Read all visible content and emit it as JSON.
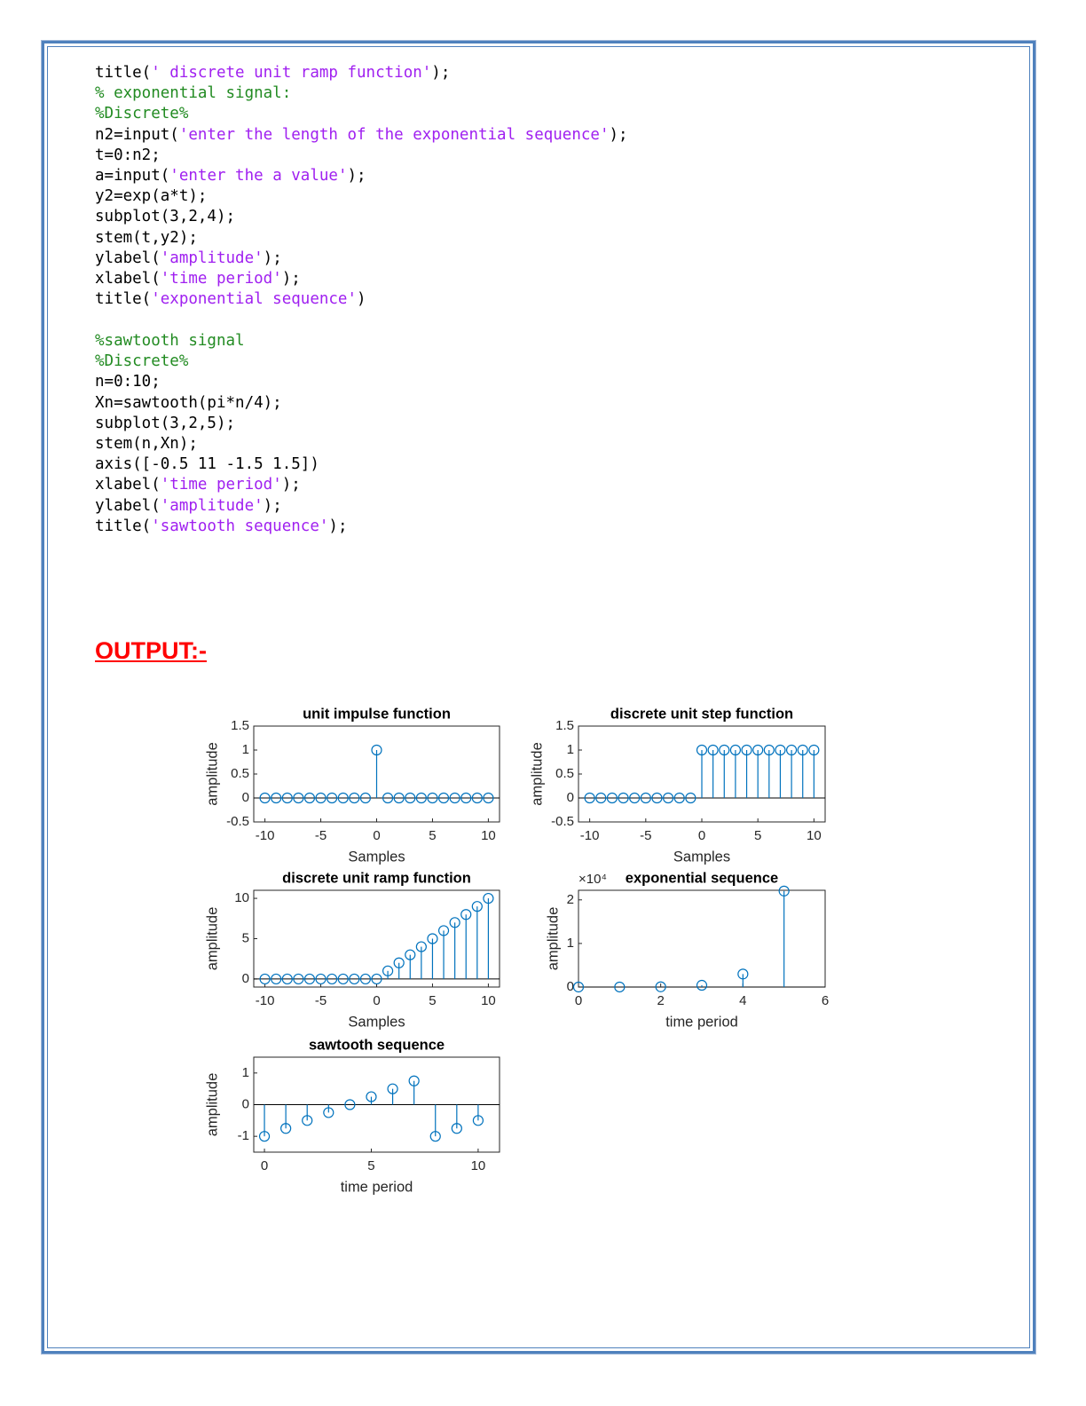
{
  "code": {
    "blocks": [
      {
        "lines": [
          [
            {
              "text": "title(",
              "color": "#000000"
            },
            {
              "text": "' discrete unit ramp function'",
              "color": "#a020f0"
            },
            {
              "text": ");",
              "color": "#000000"
            }
          ],
          [
            {
              "text": "% exponential signal:",
              "color": "#228b22"
            }
          ],
          [
            {
              "text": "%Discrete%",
              "color": "#228b22"
            }
          ],
          [
            {
              "text": "n2=input(",
              "color": "#000000"
            },
            {
              "text": "'enter the length of the exponential sequence'",
              "color": "#a020f0"
            },
            {
              "text": ");",
              "color": "#000000"
            }
          ],
          [
            {
              "text": "t=0:n2;",
              "color": "#000000"
            }
          ],
          [
            {
              "text": "a=input(",
              "color": "#000000"
            },
            {
              "text": "'enter the a value'",
              "color": "#a020f0"
            },
            {
              "text": ");",
              "color": "#000000"
            }
          ],
          [
            {
              "text": "y2=exp(a*t);",
              "color": "#000000"
            }
          ],
          [
            {
              "text": "subplot(3,2,4);",
              "color": "#000000"
            }
          ],
          [
            {
              "text": "stem(t,y2);",
              "color": "#000000"
            }
          ],
          [
            {
              "text": "ylabel(",
              "color": "#000000"
            },
            {
              "text": "'amplitude'",
              "color": "#a020f0"
            },
            {
              "text": ");",
              "color": "#000000"
            }
          ],
          [
            {
              "text": "xlabel(",
              "color": "#000000"
            },
            {
              "text": "'time period'",
              "color": "#a020f0"
            },
            {
              "text": ");",
              "color": "#000000"
            }
          ],
          [
            {
              "text": "title(",
              "color": "#000000"
            },
            {
              "text": "'exponential sequence'",
              "color": "#a020f0"
            },
            {
              "text": ")",
              "color": "#000000"
            }
          ]
        ]
      },
      {
        "lines": [
          [
            {
              "text": "%sawtooth signal",
              "color": "#228b22"
            }
          ],
          [
            {
              "text": "%Discrete%",
              "color": "#228b22"
            }
          ],
          [
            {
              "text": "n=0:10;",
              "color": "#000000"
            }
          ],
          [
            {
              "text": "Xn=sawtooth(pi*n/4);",
              "color": "#000000"
            }
          ],
          [
            {
              "text": "subplot(3,2,5);",
              "color": "#000000"
            }
          ],
          [
            {
              "text": "stem(n,Xn);",
              "color": "#000000"
            }
          ],
          [
            {
              "text": "axis([-0.5 11 -1.5 1.5])",
              "color": "#000000"
            }
          ],
          [
            {
              "text": "xlabel(",
              "color": "#000000"
            },
            {
              "text": "'time period'",
              "color": "#a020f0"
            },
            {
              "text": ");",
              "color": "#000000"
            }
          ],
          [
            {
              "text": "ylabel(",
              "color": "#000000"
            },
            {
              "text": "'amplitude'",
              "color": "#a020f0"
            },
            {
              "text": ");",
              "color": "#000000"
            }
          ],
          [
            {
              "text": "title(",
              "color": "#000000"
            },
            {
              "text": "'sawtooth sequence'",
              "color": "#a020f0"
            },
            {
              "text": ");",
              "color": "#000000"
            }
          ]
        ]
      }
    ]
  },
  "heading": "OUTPUT:-",
  "chart_data": [
    {
      "type": "stem",
      "title": "unit impulse function",
      "xlabel": "Samples",
      "ylabel": "amplitude",
      "color": "#0072bd",
      "x": [
        -10,
        -9,
        -8,
        -7,
        -6,
        -5,
        -4,
        -3,
        -2,
        -1,
        0,
        1,
        2,
        3,
        4,
        5,
        6,
        7,
        8,
        9,
        10
      ],
      "values": [
        0,
        0,
        0,
        0,
        0,
        0,
        0,
        0,
        0,
        0,
        1,
        0,
        0,
        0,
        0,
        0,
        0,
        0,
        0,
        0,
        0
      ],
      "xlim": [
        -11,
        11
      ],
      "xticks": [
        -10,
        -5,
        0,
        5,
        10
      ],
      "ylim": [
        -0.5,
        1.5
      ],
      "yticks": [
        -0.5,
        0,
        0.5,
        1,
        1.5
      ]
    },
    {
      "type": "stem",
      "title": "discrete unit step function",
      "xlabel": "Samples",
      "ylabel": "amplitude",
      "color": "#0072bd",
      "x": [
        -10,
        -9,
        -8,
        -7,
        -6,
        -5,
        -4,
        -3,
        -2,
        -1,
        0,
        1,
        2,
        3,
        4,
        5,
        6,
        7,
        8,
        9,
        10
      ],
      "values": [
        0,
        0,
        0,
        0,
        0,
        0,
        0,
        0,
        0,
        0,
        1,
        1,
        1,
        1,
        1,
        1,
        1,
        1,
        1,
        1,
        1
      ],
      "xlim": [
        -11,
        11
      ],
      "xticks": [
        -10,
        -5,
        0,
        5,
        10
      ],
      "ylim": [
        -0.5,
        1.5
      ],
      "yticks": [
        -0.5,
        0,
        0.5,
        1,
        1.5
      ]
    },
    {
      "type": "stem",
      "title": "discrete unit ramp function",
      "xlabel": "Samples",
      "ylabel": "amplitude",
      "color": "#0072bd",
      "x": [
        -10,
        -9,
        -8,
        -7,
        -6,
        -5,
        -4,
        -3,
        -2,
        -1,
        0,
        1,
        2,
        3,
        4,
        5,
        6,
        7,
        8,
        9,
        10
      ],
      "values": [
        0,
        0,
        0,
        0,
        0,
        0,
        0,
        0,
        0,
        0,
        0,
        1,
        2,
        3,
        4,
        5,
        6,
        7,
        8,
        9,
        10
      ],
      "xlim": [
        -11,
        11
      ],
      "xticks": [
        -10,
        -5,
        0,
        5,
        10
      ],
      "ylim": [
        -1,
        11
      ],
      "yticks": [
        0,
        5,
        10
      ]
    },
    {
      "type": "stem",
      "title": "exponential sequence",
      "xlabel": "time period",
      "ylabel": "amplitude",
      "color": "#0072bd",
      "y_multiplier": "×10⁴",
      "x": [
        0,
        1,
        2,
        3,
        4,
        5
      ],
      "values": [
        1,
        7.4,
        54.6,
        403.4,
        2981,
        22026
      ],
      "xlim": [
        0,
        6
      ],
      "xticks": [
        0,
        2,
        4,
        6
      ],
      "ylim": [
        0,
        22200
      ],
      "yticks": [
        {
          "value": 0,
          "label": "0"
        },
        {
          "value": 10000,
          "label": "1"
        },
        {
          "value": 20000,
          "label": "2"
        }
      ]
    },
    {
      "type": "stem",
      "title": "sawtooth sequence",
      "xlabel": "time period",
      "ylabel": "amplitude",
      "color": "#0072bd",
      "x": [
        0,
        1,
        2,
        3,
        4,
        5,
        6,
        7,
        8,
        9,
        10
      ],
      "values": [
        -1,
        -0.75,
        -0.5,
        -0.25,
        0,
        0.25,
        0.5,
        0.75,
        -1,
        -0.75,
        -0.5
      ],
      "xlim": [
        -0.5,
        11
      ],
      "xticks": [
        0,
        5,
        10
      ],
      "ylim": [
        -1.5,
        1.5
      ],
      "yticks": [
        -1,
        0,
        1
      ]
    }
  ]
}
